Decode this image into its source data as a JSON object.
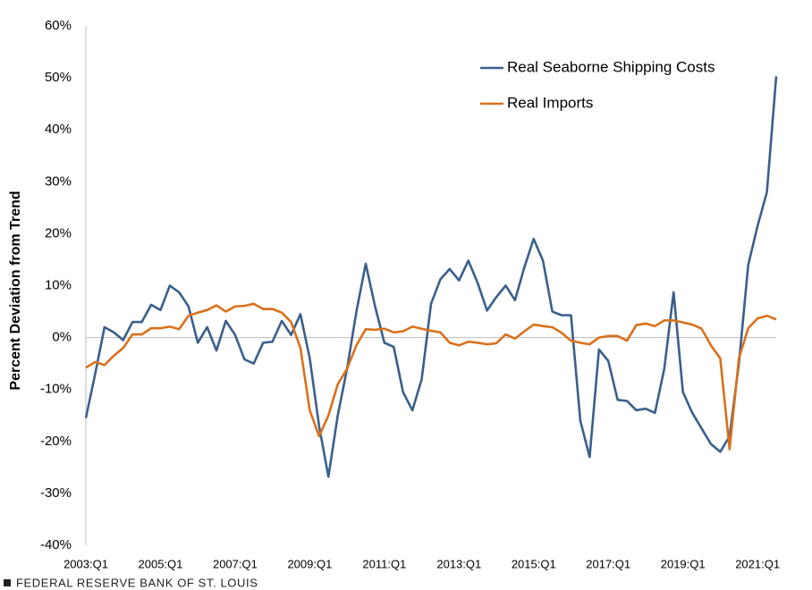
{
  "chart_data": {
    "type": "line",
    "y_label": "Percent Deviation from Trend",
    "source": "FEDERAL RESERVE BANK OF ST. LOUIS",
    "categories": [
      "2003:Q1",
      null,
      null,
      null,
      null,
      null,
      null,
      null,
      "2005:Q1",
      null,
      null,
      null,
      null,
      null,
      null,
      null,
      "2007:Q1",
      null,
      null,
      null,
      null,
      null,
      null,
      null,
      "2009:Q1",
      null,
      null,
      null,
      null,
      null,
      null,
      null,
      "2011:Q1",
      null,
      null,
      null,
      null,
      null,
      null,
      null,
      "2013:Q1",
      null,
      null,
      null,
      null,
      null,
      null,
      null,
      "2015:Q1",
      null,
      null,
      null,
      null,
      null,
      null,
      null,
      "2017:Q1",
      null,
      null,
      null,
      null,
      null,
      null,
      null,
      "2019:Q1",
      null,
      null,
      null,
      null,
      null,
      null,
      null,
      "2021:Q1",
      null,
      null
    ],
    "series": [
      {
        "name": "Real Seaborne Shipping Costs",
        "color": "#3a5f8c",
        "values": [
          -15.5,
          -7,
          2,
          1,
          -0.5,
          3,
          3,
          6.3,
          5.3,
          10,
          8.7,
          6,
          -1,
          2,
          -2.5,
          3.2,
          0.5,
          -4.2,
          -5,
          -1,
          -0.8,
          3.2,
          0.5,
          4.5,
          -4,
          -17,
          -26.8,
          -15,
          -6,
          5,
          14.2,
          6,
          -1,
          -1.8,
          -10.5,
          -14,
          -8,
          6.5,
          11.2,
          13.2,
          11,
          14.8,
          10.5,
          5.2,
          7.8,
          10,
          7.2,
          13.5,
          19,
          14.8,
          5,
          4.3,
          4.3,
          -16,
          -23,
          -2.3,
          -4.5,
          -12,
          -12.2,
          -14,
          -13.7,
          -14.5,
          -6,
          8.7,
          -10.5,
          -14.5,
          -17.5,
          -20.5,
          -22,
          -19,
          -5,
          14,
          21.5,
          28,
          50.3
        ]
      },
      {
        "name": "Real Imports",
        "color": "#d9711c",
        "values": [
          -5.8,
          -4.7,
          -5.3,
          -3.5,
          -2,
          0.6,
          0.6,
          1.8,
          1.8,
          2.1,
          1.6,
          4.2,
          4.8,
          5.3,
          6.2,
          5,
          6,
          6.1,
          6.5,
          5.5,
          5.5,
          4.8,
          3,
          -2,
          -14,
          -19,
          -15,
          -9,
          -6,
          -1.5,
          1.6,
          1.5,
          1.7,
          1,
          1.2,
          2.1,
          1.7,
          1.3,
          1,
          -1,
          -1.5,
          -0.8,
          -1,
          -1.3,
          -1.1,
          0.6,
          -0.2,
          1.2,
          2.5,
          2.2,
          2,
          0.9,
          -0.6,
          -1,
          -1.3,
          0,
          0.3,
          0.3,
          -0.6,
          2.4,
          2.7,
          2.2,
          3.3,
          3.3,
          2.9,
          2.5,
          1.7,
          -1.5,
          -4,
          -21.5,
          -4,
          1.8,
          3.7,
          4.2,
          3.5
        ]
      }
    ],
    "ylim": [
      -40,
      60
    ],
    "yticks": [
      {
        "value": -40,
        "label": "-40%"
      },
      {
        "value": -30,
        "label": "-30%"
      },
      {
        "value": -20,
        "label": "-20%"
      },
      {
        "value": -10,
        "label": "-10%"
      },
      {
        "value": 0,
        "label": "0%"
      },
      {
        "value": 10,
        "label": "10%"
      },
      {
        "value": 20,
        "label": "20%"
      },
      {
        "value": 30,
        "label": "30%"
      },
      {
        "value": 40,
        "label": "40%"
      },
      {
        "value": 50,
        "label": "50%"
      },
      {
        "value": 60,
        "label": "60%"
      }
    ],
    "grid": false,
    "legend": "upper right"
  }
}
